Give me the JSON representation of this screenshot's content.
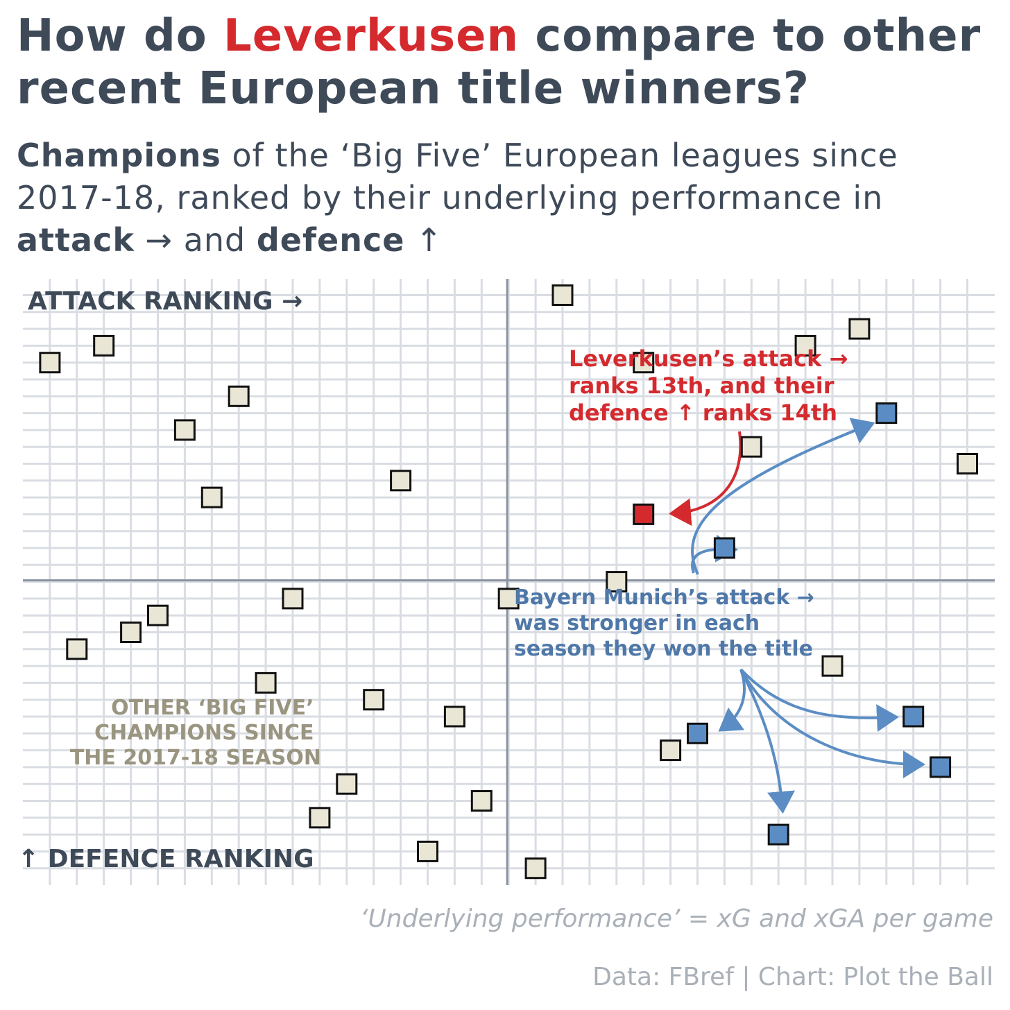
{
  "title": {
    "before": "How do ",
    "highlight": "Leverkusen",
    "after": " compare to other recent European title winners?"
  },
  "subtitle": {
    "p1_bold": "Champions",
    "p2": " of the ‘Big Five’ European leagues since 2017-18, ranked by their underlying performance in ",
    "p3_bold": "attack",
    "p4": " → and ",
    "p5_bold": "defence",
    "p6": " ↑"
  },
  "footnote": "‘Underlying performance’ = xG and xGA per game",
  "credit": "Data: FBref | Chart: Plot the Ball",
  "colors": {
    "text": "#3f4a59",
    "leverkusen": "#d42a2e",
    "bayern": "#5b8dc4",
    "bayern_text": "#4f78a8",
    "other_fill": "#e9e6d6",
    "other_label": "#9a9580",
    "grid": "#d9dde3",
    "axis": "#8b93a1"
  },
  "chart_data": {
    "type": "scatter",
    "title": "",
    "xlabel": "ATTACK RANKING →",
    "ylabel": "↑ DEFENCE RANKING",
    "xlim": [
      0,
      36
    ],
    "ylim": [
      0,
      36
    ],
    "grid": true,
    "series": [
      {
        "name": "OTHER ‘BIG FIVE’ CHAMPIONS SINCE THE 2017-18 SEASON",
        "color": "#e9e6d6",
        "x": [
          1,
          3,
          8,
          6,
          7,
          14,
          18,
          20,
          23,
          29,
          31,
          27,
          35,
          22,
          10,
          5,
          4,
          2,
          9,
          13,
          16,
          12,
          11,
          17,
          15,
          19,
          24,
          30
        ],
        "y": [
          31,
          32,
          29,
          27,
          23,
          24,
          17,
          35,
          31,
          32,
          33,
          26,
          25,
          18,
          17,
          16,
          15,
          14,
          12,
          11,
          10,
          6,
          4,
          5,
          2,
          1,
          8,
          13
        ]
      },
      {
        "name": "Bayern Munich",
        "color": "#5b8dc4",
        "x": [
          32,
          26,
          25,
          33,
          34,
          28
        ],
        "y": [
          28,
          20,
          9,
          10,
          7,
          3
        ]
      },
      {
        "name": "Leverkusen",
        "color": "#d42a2e",
        "x": [
          23
        ],
        "y": [
          22
        ]
      }
    ],
    "annotations": [
      {
        "id": "lev",
        "text": [
          "Leverkusen’s attack →",
          "ranks 13th, and their",
          "defence ↑ ranks 14th"
        ]
      },
      {
        "id": "bay",
        "text": [
          "Bayern Munich’s attack →",
          "was stronger in each",
          "season they won the title"
        ]
      },
      {
        "id": "other",
        "text": [
          "OTHER ‘BIG FIVE’",
          "CHAMPIONS SINCE",
          "THE 2017-18 SEASON"
        ]
      }
    ]
  }
}
